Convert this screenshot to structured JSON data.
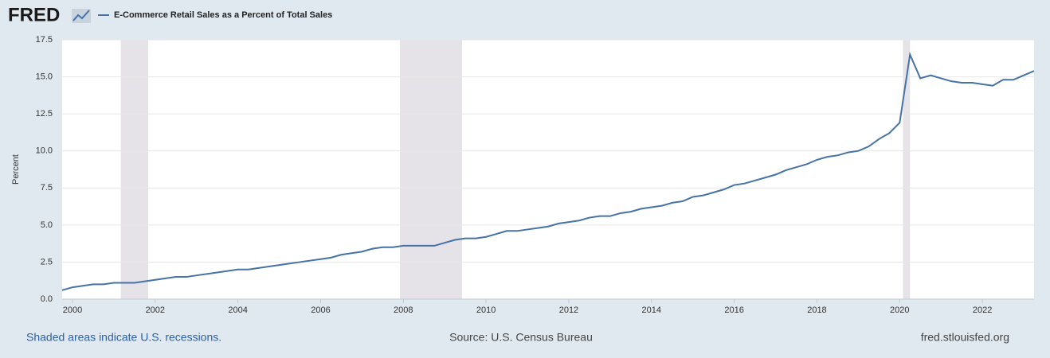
{
  "chart_data": {
    "type": "line",
    "logo": "FRED",
    "ylabel": "Percent",
    "note": "Shaded areas indicate U.S. recessions.",
    "source": "Source: U.S. Census Bureau",
    "site": "fred.stlouisfed.org",
    "x": [
      1999.75,
      2000,
      2000.25,
      2000.5,
      2000.75,
      2001,
      2001.25,
      2001.5,
      2001.75,
      2002,
      2002.25,
      2002.5,
      2002.75,
      2003,
      2003.25,
      2003.5,
      2003.75,
      2004,
      2004.25,
      2004.5,
      2004.75,
      2005,
      2005.25,
      2005.5,
      2005.75,
      2006,
      2006.25,
      2006.5,
      2006.75,
      2007,
      2007.25,
      2007.5,
      2007.75,
      2008,
      2008.25,
      2008.5,
      2008.75,
      2009,
      2009.25,
      2009.5,
      2009.75,
      2010,
      2010.25,
      2010.5,
      2010.75,
      2011,
      2011.25,
      2011.5,
      2011.75,
      2012,
      2012.25,
      2012.5,
      2012.75,
      2013,
      2013.25,
      2013.5,
      2013.75,
      2014,
      2014.25,
      2014.5,
      2014.75,
      2015,
      2015.25,
      2015.5,
      2015.75,
      2016,
      2016.25,
      2016.5,
      2016.75,
      2017,
      2017.25,
      2017.5,
      2017.75,
      2018,
      2018.25,
      2018.5,
      2018.75,
      2019,
      2019.25,
      2019.5,
      2019.75,
      2020,
      2020.25,
      2020.5,
      2020.75,
      2021,
      2021.25,
      2021.5,
      2021.75,
      2022,
      2022.25,
      2022.5,
      2022.75,
      2023,
      2023.25
    ],
    "series": [
      {
        "name": "E-Commerce Retail Sales as a Percent of Total Sales",
        "color": "#4572a7",
        "values": [
          0.6,
          0.8,
          0.9,
          1.0,
          1.0,
          1.1,
          1.1,
          1.1,
          1.2,
          1.3,
          1.4,
          1.5,
          1.5,
          1.6,
          1.7,
          1.8,
          1.9,
          2.0,
          2.0,
          2.1,
          2.2,
          2.3,
          2.4,
          2.5,
          2.6,
          2.7,
          2.8,
          3.0,
          3.1,
          3.2,
          3.4,
          3.5,
          3.5,
          3.6,
          3.6,
          3.6,
          3.6,
          3.8,
          4.0,
          4.1,
          4.1,
          4.2,
          4.4,
          4.6,
          4.6,
          4.7,
          4.8,
          4.9,
          5.1,
          5.2,
          5.3,
          5.5,
          5.6,
          5.6,
          5.8,
          5.9,
          6.1,
          6.2,
          6.3,
          6.5,
          6.6,
          6.9,
          7.0,
          7.2,
          7.4,
          7.7,
          7.8,
          8.0,
          8.2,
          8.4,
          8.7,
          8.9,
          9.1,
          9.4,
          9.6,
          9.7,
          9.9,
          10.0,
          10.3,
          10.8,
          11.2,
          11.9,
          16.5,
          14.9,
          15.1,
          14.9,
          14.7,
          14.6,
          14.6,
          14.5,
          14.4,
          14.8,
          14.8,
          15.1,
          15.4
        ]
      }
    ],
    "recessions": [
      [
        2001.17,
        2001.83
      ],
      [
        2007.92,
        2009.42
      ],
      [
        2020.08,
        2020.25
      ]
    ],
    "recession_color": "#e5e3e8",
    "xlim": [
      1999.75,
      2023.25
    ],
    "xticks": [
      2000,
      2002,
      2004,
      2006,
      2008,
      2010,
      2012,
      2014,
      2016,
      2018,
      2020,
      2022
    ],
    "ylim": [
      0,
      17.5
    ],
    "yticks": [
      {
        "value": 0,
        "label": "0.0"
      },
      2.5,
      {
        "value": 5,
        "label": "5.0"
      },
      7.5,
      {
        "value": 10,
        "label": "10.0"
      },
      12.5,
      {
        "value": 15,
        "label": "15.0"
      },
      17.5
    ],
    "grid": true
  }
}
